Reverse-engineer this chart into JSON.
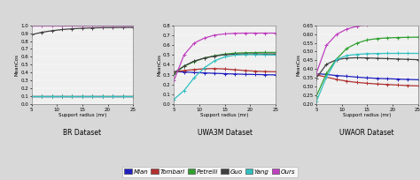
{
  "x": [
    5,
    7,
    9,
    11,
    13,
    15,
    17,
    19,
    21,
    23,
    25
  ],
  "colors": {
    "Mian": "#2020c0",
    "Tombari": "#b03030",
    "Petrelli": "#30a030",
    "Guo": "#404040",
    "Yang": "#30c0c0",
    "Ours": "#c040c0"
  },
  "BR": {
    "Mian": [
      0.1,
      0.1,
      0.1,
      0.1,
      0.1,
      0.1,
      0.1,
      0.1,
      0.1,
      0.1,
      0.1
    ],
    "Tombari": [
      0.1,
      0.1,
      0.1,
      0.1,
      0.1,
      0.1,
      0.1,
      0.1,
      0.1,
      0.1,
      0.1
    ],
    "Petrelli": [
      0.1,
      0.1,
      0.1,
      0.1,
      0.1,
      0.1,
      0.1,
      0.1,
      0.1,
      0.1,
      0.1
    ],
    "Guo": [
      0.88,
      0.91,
      0.93,
      0.945,
      0.955,
      0.962,
      0.966,
      0.969,
      0.97,
      0.971,
      0.972
    ],
    "Yang": [
      0.1,
      0.1,
      0.1,
      0.1,
      0.1,
      0.1,
      0.1,
      0.1,
      0.1,
      0.1,
      0.1
    ],
    "Ours": [
      0.99,
      0.99,
      0.99,
      0.99,
      0.99,
      0.99,
      0.99,
      0.99,
      0.99,
      0.99,
      0.99
    ]
  },
  "UWA3M": {
    "Mian": [
      0.33,
      0.328,
      0.322,
      0.318,
      0.314,
      0.31,
      0.307,
      0.304,
      0.302,
      0.3,
      0.298
    ],
    "Tombari": [
      0.328,
      0.342,
      0.352,
      0.36,
      0.362,
      0.358,
      0.35,
      0.342,
      0.336,
      0.332,
      0.33
    ],
    "Petrelli": [
      0.308,
      0.385,
      0.432,
      0.468,
      0.492,
      0.508,
      0.518,
      0.522,
      0.524,
      0.525,
      0.525
    ],
    "Guo": [
      0.318,
      0.388,
      0.438,
      0.468,
      0.488,
      0.502,
      0.508,
      0.51,
      0.51,
      0.51,
      0.51
    ],
    "Yang": [
      0.05,
      0.14,
      0.27,
      0.37,
      0.44,
      0.48,
      0.498,
      0.502,
      0.502,
      0.5,
      0.498
    ],
    "Ours": [
      0.24,
      0.5,
      0.62,
      0.67,
      0.7,
      0.712,
      0.718,
      0.72,
      0.72,
      0.72,
      0.72
    ]
  },
  "UWAOR": {
    "Mian": [
      0.375,
      0.37,
      0.364,
      0.36,
      0.355,
      0.351,
      0.348,
      0.346,
      0.344,
      0.342,
      0.34
    ],
    "Tombari": [
      0.368,
      0.355,
      0.342,
      0.332,
      0.325,
      0.32,
      0.316,
      0.313,
      0.31,
      0.307,
      0.305
    ],
    "Petrelli": [
      0.245,
      0.375,
      0.458,
      0.518,
      0.548,
      0.566,
      0.574,
      0.578,
      0.58,
      0.581,
      0.582
    ],
    "Guo": [
      0.348,
      0.428,
      0.454,
      0.463,
      0.465,
      0.464,
      0.462,
      0.46,
      0.458,
      0.456,
      0.454
    ],
    "Yang": [
      0.215,
      0.355,
      0.455,
      0.478,
      0.484,
      0.488,
      0.489,
      0.49,
      0.49,
      0.49,
      0.49
    ],
    "Ours": [
      0.375,
      0.535,
      0.598,
      0.628,
      0.644,
      0.652,
      0.658,
      0.661,
      0.663,
      0.664,
      0.665
    ]
  },
  "BR_ylim": [
    0.0,
    1.0
  ],
  "UWA3M_ylim": [
    0.0,
    0.8
  ],
  "UWAOR_ylim": [
    0.2,
    0.65
  ],
  "yticks_BR": [
    0.0,
    0.1,
    0.2,
    0.3,
    0.4,
    0.5,
    0.6,
    0.7,
    0.8,
    0.9,
    1.0
  ],
  "yticks_UWA3M": [
    0.0,
    0.1,
    0.2,
    0.3,
    0.4,
    0.5,
    0.6,
    0.7,
    0.8
  ],
  "yticks_UWAOR": [
    0.2,
    0.25,
    0.3,
    0.35,
    0.4,
    0.45,
    0.5,
    0.55,
    0.6,
    0.65
  ],
  "xticks": [
    5,
    10,
    15,
    20,
    25
  ],
  "xlabel": "Support radius (mr)",
  "ylabel": "MeanCos",
  "titles": [
    "BR Dataset",
    "UWA3M Dataset",
    "UWAOR Dataset"
  ],
  "legend_labels": [
    "Mian",
    "Tombari",
    "Petrelli",
    "Guo",
    "Yang",
    "Ours"
  ],
  "marker": "+",
  "marker_size": 2.5,
  "linewidth": 0.9,
  "bg_color": "#e8e8e8"
}
